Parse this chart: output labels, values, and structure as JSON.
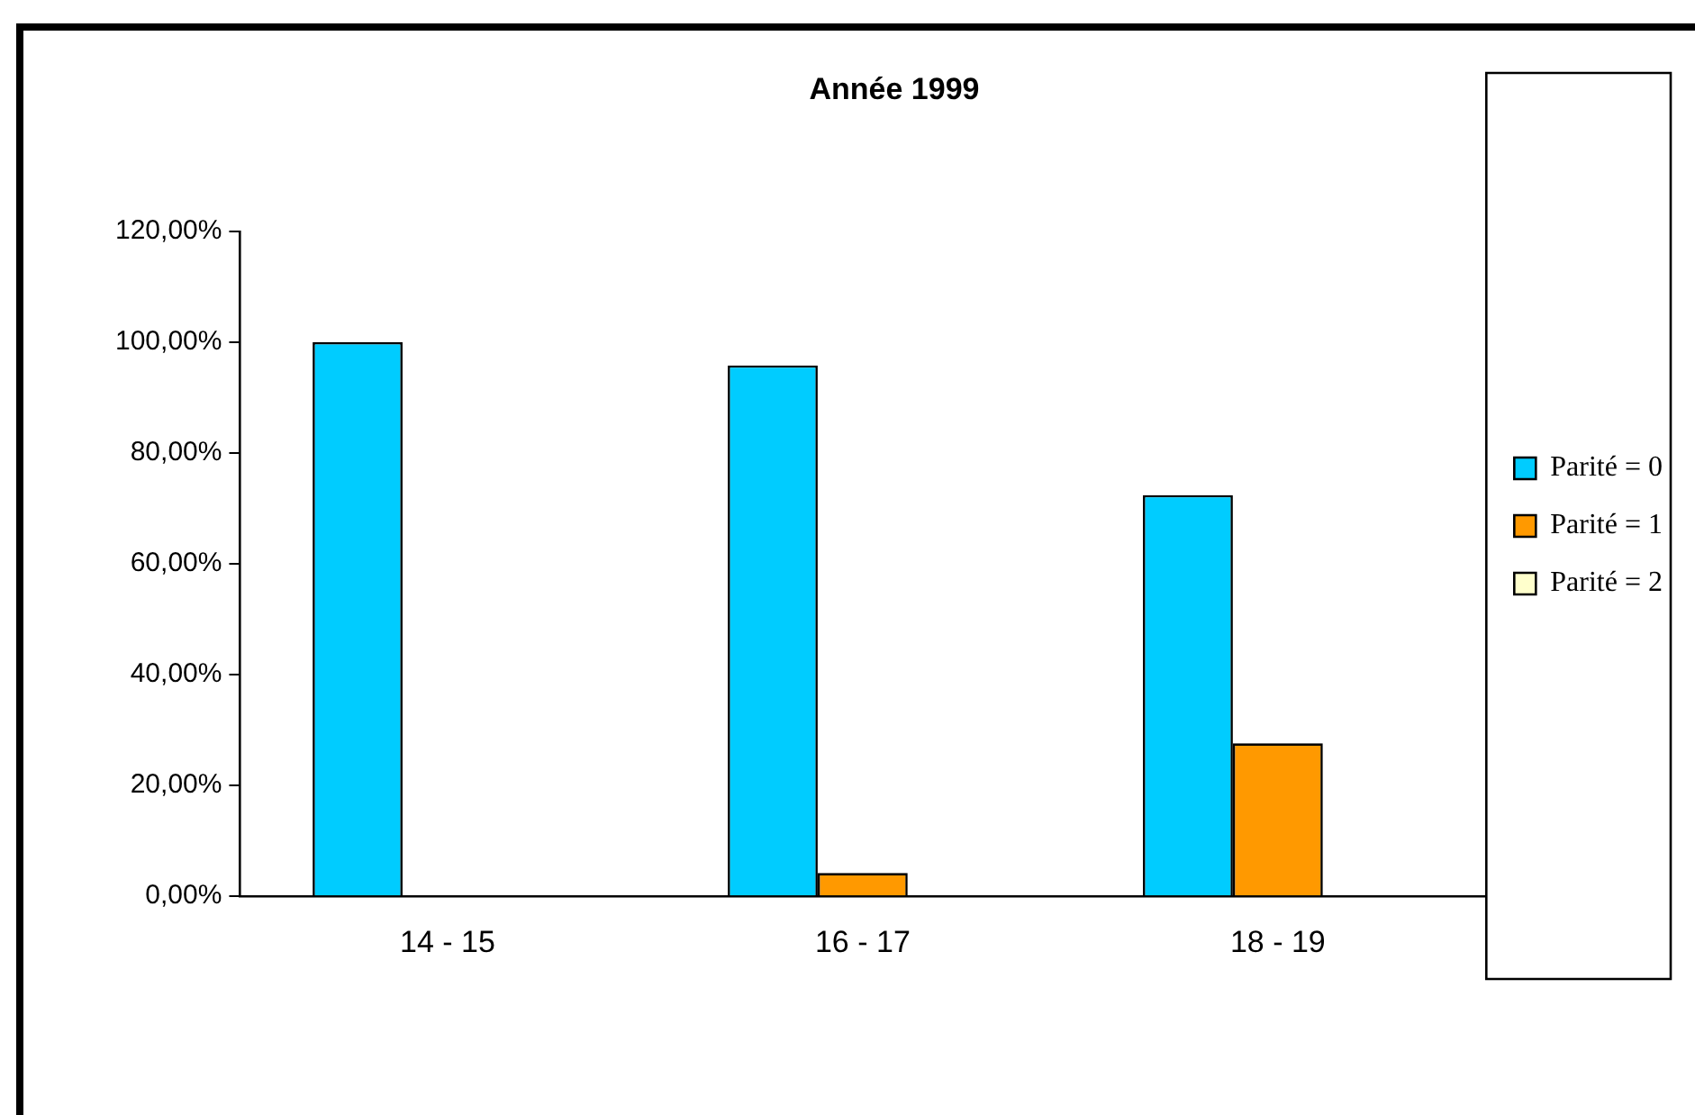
{
  "chart_data": {
    "type": "bar",
    "title": "Année 1999",
    "categories": [
      "14 - 15",
      "16 - 17",
      "18 - 19"
    ],
    "series": [
      {
        "name": "Parité = 0",
        "color": "#00ccff",
        "values": [
          100,
          95.8,
          72.4
        ]
      },
      {
        "name": "Parité = 1",
        "color": "#ff9900",
        "values": [
          0,
          4.2,
          27.6
        ]
      },
      {
        "name": "Parité = 2",
        "color": "#ffffcc",
        "values": [
          0,
          0,
          0
        ]
      }
    ],
    "ylim": [
      0,
      120
    ],
    "yticks": [
      {
        "value": 0,
        "label": "0,00%"
      },
      {
        "value": 20,
        "label": "20,00%"
      },
      {
        "value": 40,
        "label": "40,00%"
      },
      {
        "value": 60,
        "label": "60,00%"
      },
      {
        "value": 80,
        "label": "80,00%"
      },
      {
        "value": 100,
        "label": "100,00%"
      },
      {
        "value": 120,
        "label": "120,00%"
      }
    ],
    "grid": false,
    "legend": "right"
  }
}
